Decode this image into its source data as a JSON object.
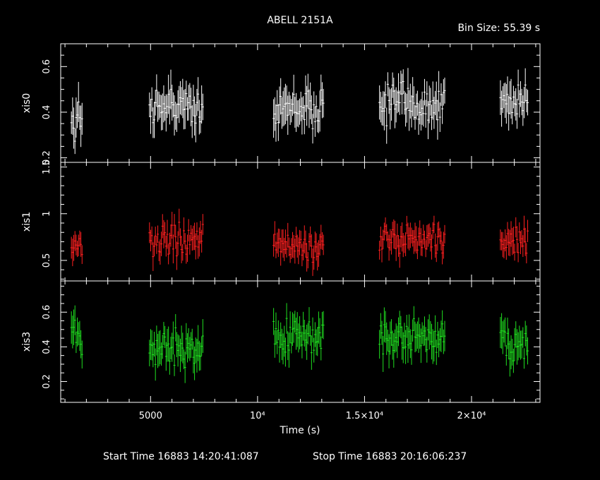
{
  "header": {
    "title": "ABELL 2151A",
    "bin_size": "Bin Size: 55.39 s"
  },
  "footer": {
    "start": "Start Time 16883 14:20:41:087",
    "stop": "Stop Time 16883 20:16:06:237"
  },
  "chart_data": {
    "type": "scatter",
    "xlabel": "Time (s)",
    "xlim": [
      800,
      23200
    ],
    "x_ticks": [
      {
        "value": 5000,
        "label": "5000"
      },
      {
        "value": 10000,
        "label": "10⁴"
      },
      {
        "value": 15000,
        "label": "1.5×10⁴"
      },
      {
        "value": 20000,
        "label": "2×10⁴"
      }
    ],
    "segments": [
      [
        1300,
        1850
      ],
      [
        4950,
        7450
      ],
      [
        10750,
        13100
      ],
      [
        15700,
        18750
      ],
      [
        21350,
        22650
      ]
    ],
    "bin_size_s": 55.39,
    "panels": [
      {
        "ylabel": "xis0",
        "color": "#ffffff",
        "ylim": [
          0.18,
          0.7
        ],
        "y_ticks": [
          {
            "value": 0.2,
            "label": "0.2"
          },
          {
            "value": 0.4,
            "label": "0.4"
          },
          {
            "value": 0.6,
            "label": "0.6"
          }
        ],
        "mean": 0.42,
        "spread": 0.06,
        "err": 0.07,
        "series": [
          {
            "segment": 0,
            "mean": 0.36
          },
          {
            "segment": 1,
            "mean": 0.43
          },
          {
            "segment": 2,
            "mean": 0.42
          },
          {
            "segment": 3,
            "mean": 0.43
          },
          {
            "segment": 4,
            "mean": 0.45
          }
        ]
      },
      {
        "ylabel": "xis1",
        "color": "#ff2020",
        "ylim": [
          0.28,
          1.55
        ],
        "y_ticks": [
          {
            "value": 0.5,
            "label": "0.5"
          },
          {
            "value": 1.0,
            "label": "1"
          },
          {
            "value": 1.5,
            "label": "1.5"
          }
        ],
        "mean": 0.68,
        "spread": 0.11,
        "err": 0.12,
        "series": [
          {
            "segment": 0,
            "mean": 0.65
          },
          {
            "segment": 1,
            "mean": 0.7
          },
          {
            "segment": 2,
            "mean": 0.66
          },
          {
            "segment": 3,
            "mean": 0.72
          },
          {
            "segment": 4,
            "mean": 0.7
          }
        ]
      },
      {
        "ylabel": "xis3",
        "color": "#20e020",
        "ylim": [
          0.08,
          0.78
        ],
        "y_ticks": [
          {
            "value": 0.2,
            "label": "0.2"
          },
          {
            "value": 0.4,
            "label": "0.4"
          },
          {
            "value": 0.6,
            "label": "0.6"
          }
        ],
        "mean": 0.43,
        "spread": 0.07,
        "err": 0.08,
        "series": [
          {
            "segment": 0,
            "mean": 0.45
          },
          {
            "segment": 1,
            "mean": 0.4
          },
          {
            "segment": 2,
            "mean": 0.46
          },
          {
            "segment": 3,
            "mean": 0.46
          },
          {
            "segment": 4,
            "mean": 0.42
          }
        ]
      }
    ]
  }
}
